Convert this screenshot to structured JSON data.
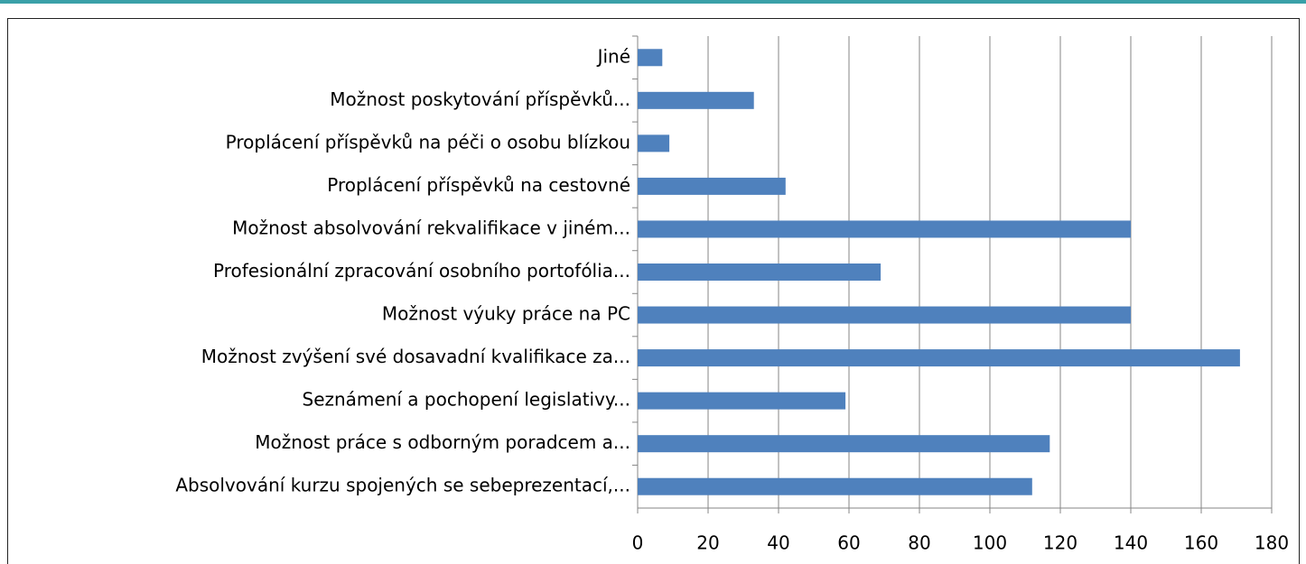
{
  "chart_data": {
    "type": "bar",
    "orientation": "horizontal",
    "categories": [
      "Jiné",
      "Možnost poskytování příspěvků...",
      "Proplácení příspěvků na péči o osobu blízkou",
      "Proplácení příspěvků na cestovné",
      "Možnost absolvování rekvalifikace v jiném...",
      "Profesionální zpracování osobního portofólia...",
      "Možnost výuky práce na PC",
      "Možnost zvýšení své dosavadní kvalifikace za...",
      "Seznámení a pochopení legislativy...",
      "Možnost práce s odborným poradcem a...",
      "Absolvování kurzu spojených se sebeprezentací,..."
    ],
    "values": [
      7,
      33,
      9,
      42,
      140,
      69,
      140,
      171,
      59,
      117,
      112
    ],
    "color": "#4f81bd",
    "xlim": [
      0,
      180
    ],
    "xticks": [
      0,
      20,
      40,
      60,
      80,
      100,
      120,
      140,
      160,
      180
    ],
    "grid": true
  }
}
